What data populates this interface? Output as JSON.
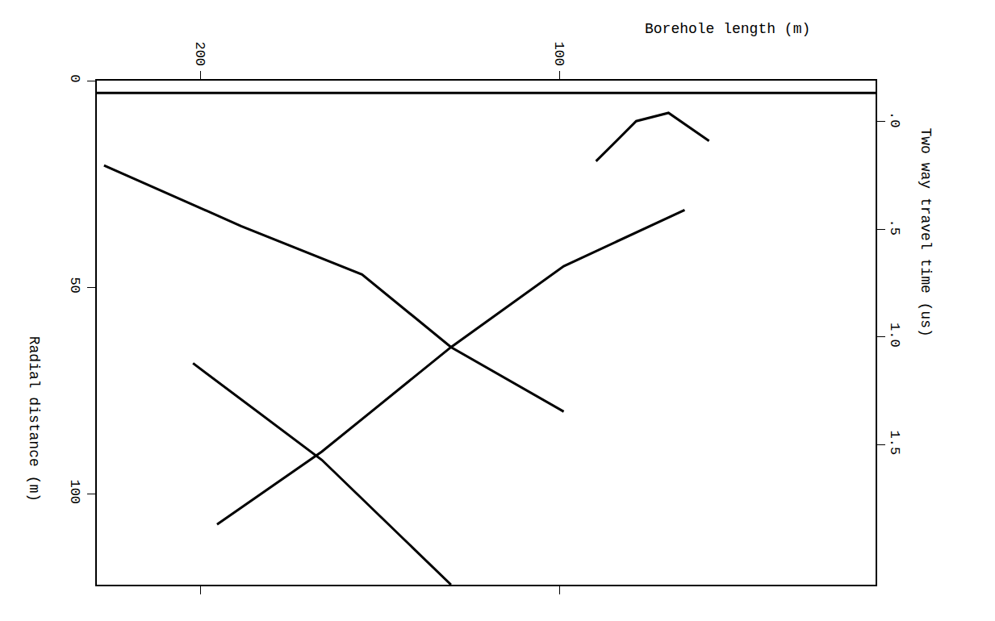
{
  "chart_data": {
    "type": "line",
    "xlabel": "Borehole length (m)",
    "ylabel": "Radial distance (m)",
    "y2label": "Two way travel time (us)",
    "xlim": [
      229,
      12
    ],
    "xticks": [
      200,
      100
    ],
    "ylim": [
      122,
      0
    ],
    "yticks": [
      0,
      50,
      100
    ],
    "y2lim": [
      2.15,
      -0.19
    ],
    "y2ticks": [
      {
        "value": 0,
        "label": ".0"
      },
      {
        "value": 0.5,
        "label": ".5"
      },
      {
        "value": 1,
        "label": "1.0"
      },
      {
        "value": 1.5,
        "label": "1.5"
      }
    ],
    "grid": false,
    "color": "#000000",
    "series": [
      {
        "x": [
          229,
          12
        ],
        "values": [
          3,
          3
        ]
      },
      {
        "x": [
          227.0,
          188.8,
          155.1,
          130.3,
          98.9
        ],
        "values": [
          20.5,
          35.2,
          46.9,
          64.5,
          80.1
        ]
      },
      {
        "x": [
          195.5,
          166.3,
          130.3,
          98.9,
          65.2
        ],
        "values": [
          107.4,
          89.8,
          64.5,
          44.9,
          31.3
        ]
      },
      {
        "x": [
          202.2,
          166.3,
          130.3
        ],
        "values": [
          68.4,
          91.8,
          122
        ]
      },
      {
        "x": [
          89.9,
          78.7,
          69.7,
          58.4
        ],
        "values": [
          19.5,
          9.8,
          7.8,
          14.6
        ]
      }
    ]
  }
}
